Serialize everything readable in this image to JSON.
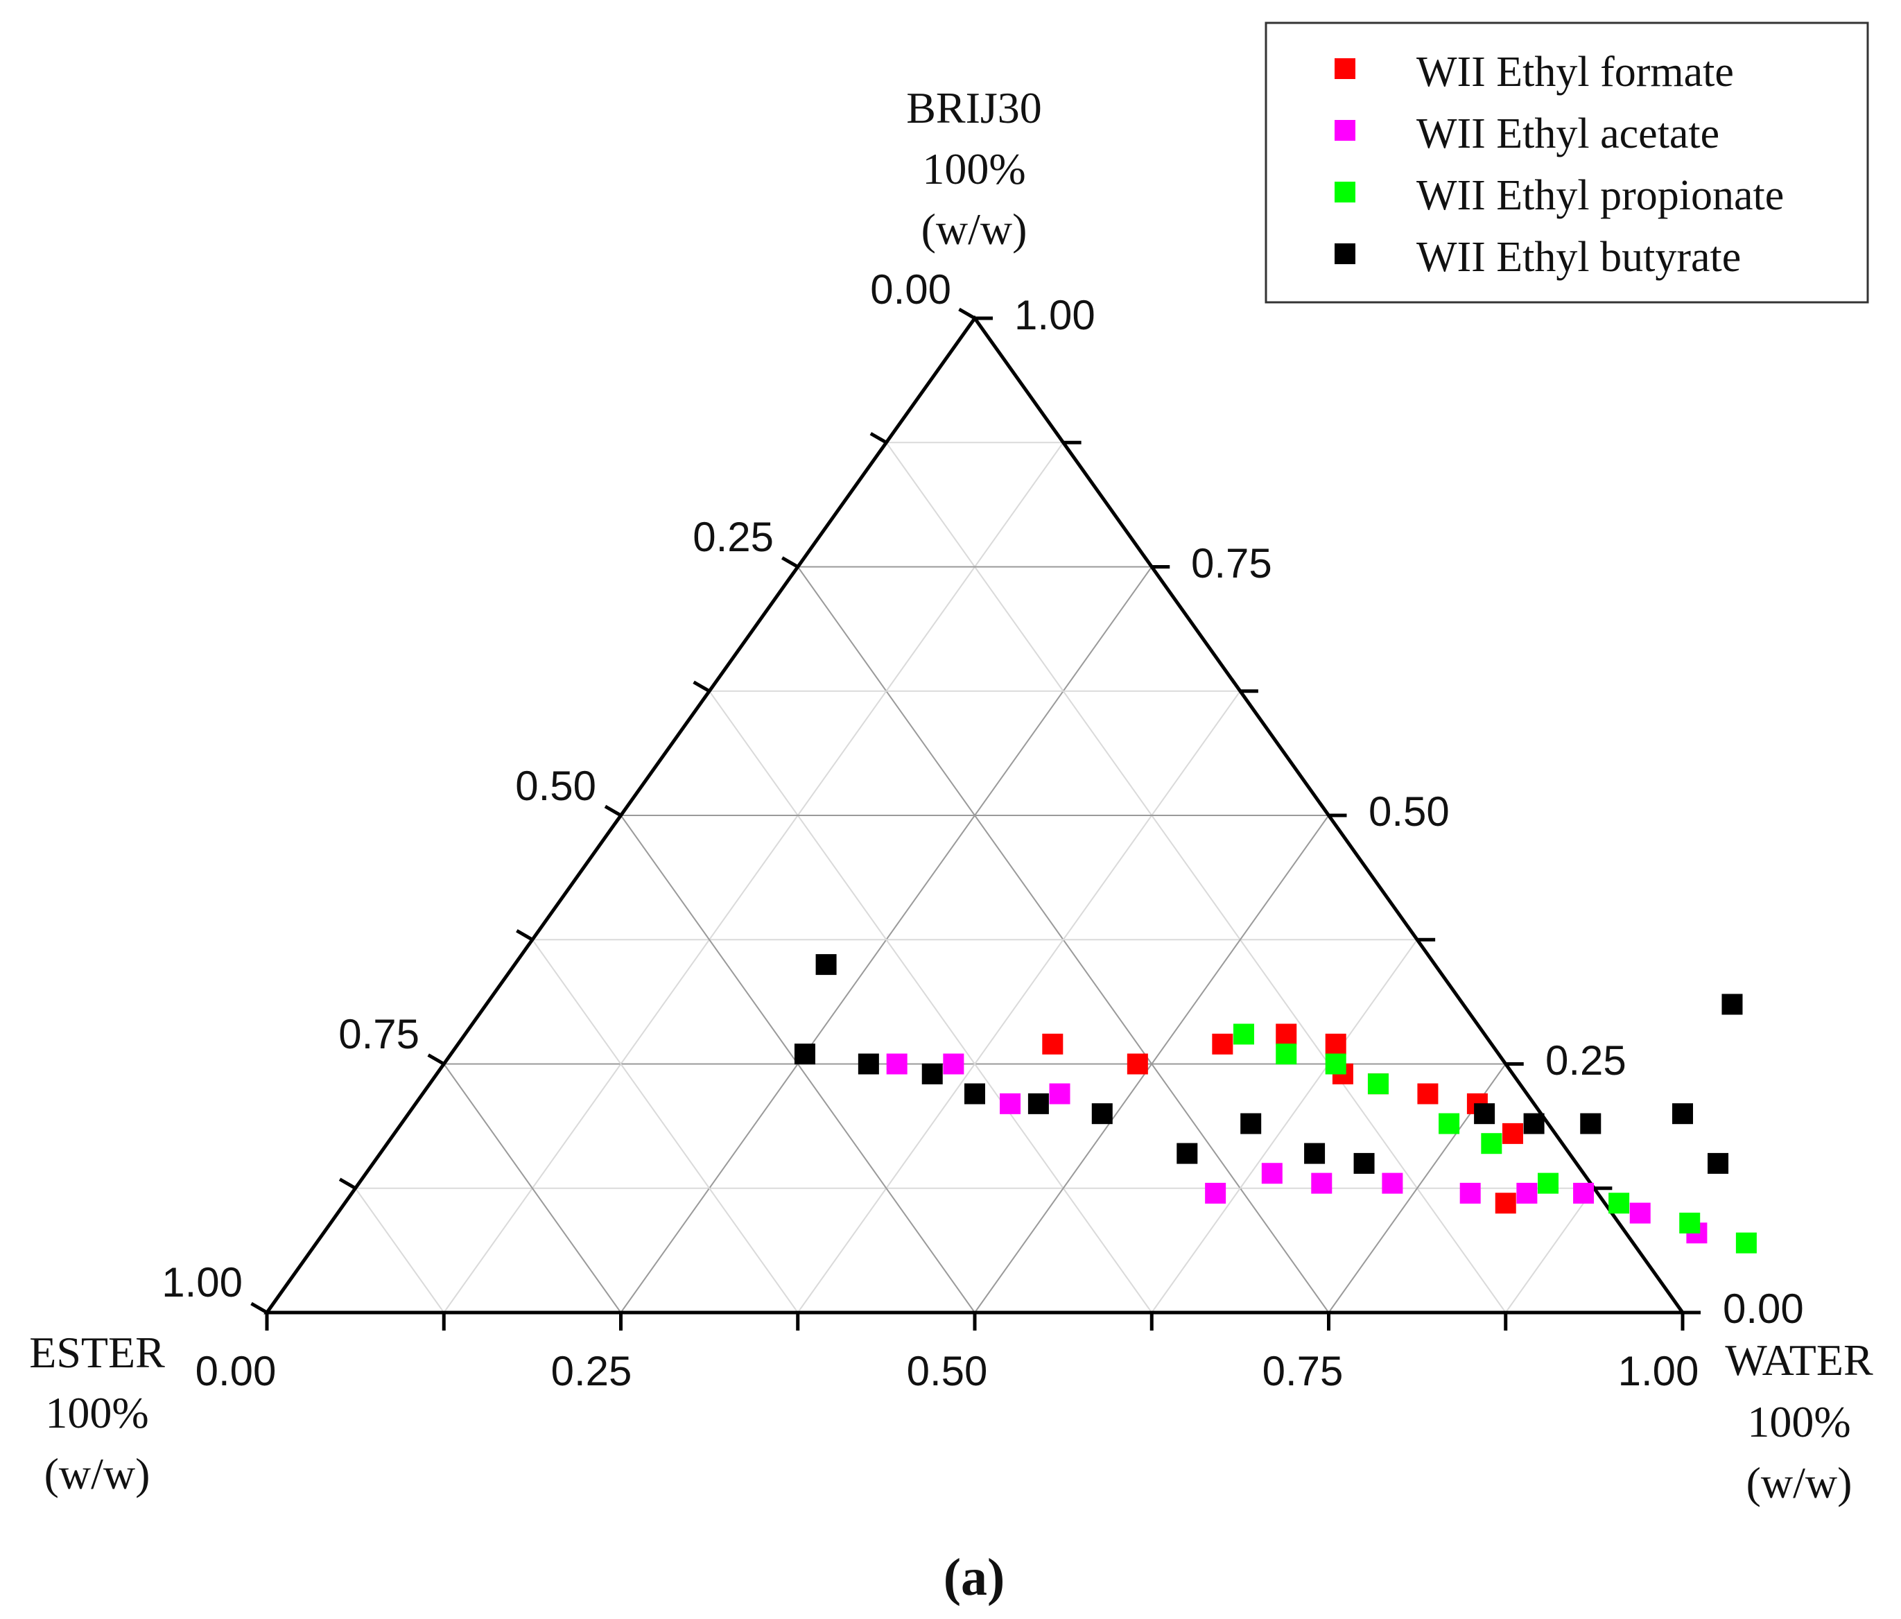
{
  "chart_data": {
    "type": "scatter",
    "subtype": "ternary",
    "caption": "(a)",
    "axes": {
      "top": {
        "lines": [
          "BRIJ30",
          "100%",
          "(w/w)"
        ],
        "name": "BRIJ30"
      },
      "left": {
        "lines": [
          "ESTER",
          "100%",
          "(w/w)"
        ],
        "name": "ESTER"
      },
      "right": {
        "lines": [
          "WATER",
          "100%",
          "(w/w)"
        ],
        "name": "WATER"
      }
    },
    "bottom_ticks": [
      "0.00",
      "0.25",
      "0.50",
      "0.75",
      "1.00"
    ],
    "left_ticks": [
      "0.00",
      "0.25",
      "0.50",
      "0.75",
      "1.00"
    ],
    "right_ticks": [
      "1.00",
      "0.75",
      "0.50",
      "0.25",
      "0.00"
    ],
    "legend_position": "top-right",
    "series": [
      {
        "name": "WII Ethyl formate",
        "color": "#ff0000",
        "points": [
          {
            "water": 0.42,
            "brij": 0.27
          },
          {
            "water": 0.49,
            "brij": 0.25
          },
          {
            "water": 0.54,
            "brij": 0.27
          },
          {
            "water": 0.58,
            "brij": 0.28
          },
          {
            "water": 0.62,
            "brij": 0.27
          },
          {
            "water": 0.67,
            "brij": 0.23
          },
          {
            "water": 0.71,
            "brij": 0.22
          },
          {
            "water": 0.75,
            "brij": 0.21
          },
          {
            "water": 0.79,
            "brij": 0.18
          },
          {
            "water": 0.64,
            "brij": 0.24
          },
          {
            "water": 0.82,
            "brij": 0.11
          }
        ]
      },
      {
        "name": "WII Ethyl acetate",
        "color": "#ff00ff",
        "points": [
          {
            "water": 0.32,
            "brij": 0.25
          },
          {
            "water": 0.36,
            "brij": 0.25
          },
          {
            "water": 0.42,
            "brij": 0.21
          },
          {
            "water": 0.45,
            "brij": 0.22
          },
          {
            "water": 0.61,
            "brij": 0.12
          },
          {
            "water": 0.64,
            "brij": 0.14
          },
          {
            "water": 0.68,
            "brij": 0.13
          },
          {
            "water": 0.73,
            "brij": 0.13
          },
          {
            "water": 0.79,
            "brij": 0.12
          },
          {
            "water": 0.83,
            "brij": 0.12
          },
          {
            "water": 0.87,
            "brij": 0.12
          },
          {
            "water": 0.92,
            "brij": 0.1
          },
          {
            "water": 0.97,
            "brij": 0.08
          }
        ]
      },
      {
        "name": "WII Ethyl propionate",
        "color": "#00ff00",
        "points": [
          {
            "water": 0.55,
            "brij": 0.28
          },
          {
            "water": 0.59,
            "brij": 0.26
          },
          {
            "water": 0.63,
            "brij": 0.25
          },
          {
            "water": 0.67,
            "brij": 0.23
          },
          {
            "water": 0.74,
            "brij": 0.19
          },
          {
            "water": 0.78,
            "brij": 0.17
          },
          {
            "water": 0.84,
            "brij": 0.13
          },
          {
            "water": 0.9,
            "brij": 0.11
          },
          {
            "water": 0.96,
            "brij": 0.09
          },
          {
            "water": 1.01,
            "brij": 0.07
          }
        ]
      },
      {
        "name": "WII Ethyl butyrate",
        "color": "#000000",
        "points": [
          {
            "water": 0.22,
            "brij": 0.35
          },
          {
            "water": 0.25,
            "brij": 0.26
          },
          {
            "water": 0.3,
            "brij": 0.25
          },
          {
            "water": 0.35,
            "brij": 0.24
          },
          {
            "water": 0.39,
            "brij": 0.22
          },
          {
            "water": 0.44,
            "brij": 0.21
          },
          {
            "water": 0.49,
            "brij": 0.2
          },
          {
            "water": 0.57,
            "brij": 0.16
          },
          {
            "water": 0.6,
            "brij": 0.19
          },
          {
            "water": 0.66,
            "brij": 0.16
          },
          {
            "water": 0.7,
            "brij": 0.15
          },
          {
            "water": 0.76,
            "brij": 0.2
          },
          {
            "water": 0.8,
            "brij": 0.19
          },
          {
            "water": 0.84,
            "brij": 0.19
          },
          {
            "water": 0.9,
            "brij": 0.2
          },
          {
            "water": 0.95,
            "brij": 0.15
          },
          {
            "water": 0.88,
            "brij": 0.31
          }
        ]
      }
    ]
  }
}
